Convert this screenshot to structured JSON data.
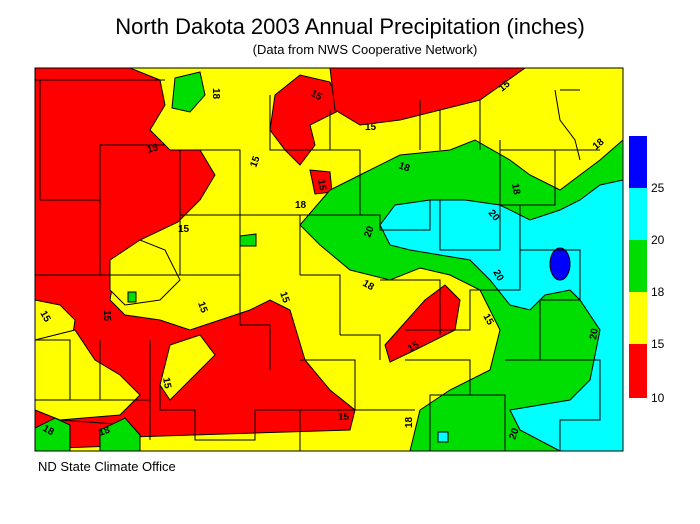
{
  "title": "North Dakota 2003 Annual Precipitation (inches)",
  "subtitle": "(Data from NWS Cooperative Network)",
  "credit": "ND State Climate Office",
  "colors": {
    "band_10_15": "#ff0000",
    "band_15_18": "#ffff00",
    "band_18_20": "#00dd00",
    "band_20_25": "#00ffff",
    "band_25_plus": "#0000ff"
  },
  "legend": {
    "ticks": [
      "25",
      "20",
      "18",
      "15",
      "10"
    ]
  },
  "contour_labels": [
    "15",
    "18",
    "15",
    "15",
    "15",
    "15",
    "18",
    "15",
    "18",
    "18",
    "18",
    "20",
    "20",
    "15",
    "20",
    "15",
    "18",
    "15",
    "15",
    "15",
    "15",
    "15",
    "15",
    "15",
    "18",
    "18",
    "18",
    "20",
    "20"
  ]
}
